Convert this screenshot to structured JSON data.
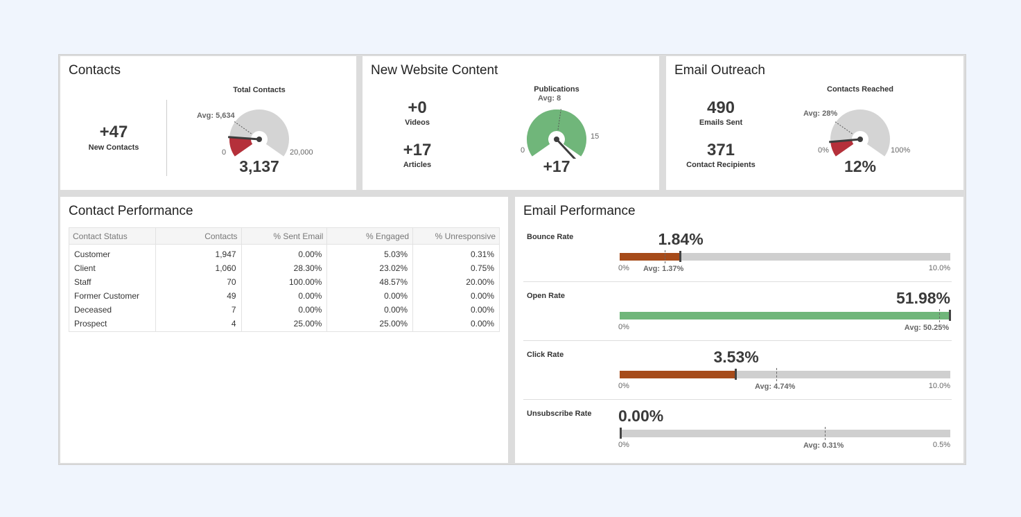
{
  "contacts": {
    "title": "Contacts",
    "new_value": "+47",
    "new_label": "New Contacts",
    "gauge": {
      "title": "Total Contacts",
      "value_label": "3,137",
      "min_label": "0",
      "max_label": "20,000",
      "avg_label": "Avg: 5,634",
      "value": 3137,
      "min": 0,
      "max": 20000,
      "avg": 5634,
      "color": "#b5303a"
    }
  },
  "website": {
    "title": "New Website Content",
    "videos_value": "+0",
    "videos_label": "Videos",
    "articles_value": "+17",
    "articles_label": "Articles",
    "gauge": {
      "title": "Publications",
      "value_label": "+17",
      "min_label": "0",
      "max_label": "15",
      "avg_label": "Avg: 8",
      "value": 17,
      "min": 0,
      "max": 15,
      "avg": 8,
      "color": "#70b67a"
    }
  },
  "email_outreach": {
    "title": "Email Outreach",
    "sent_value": "490",
    "sent_label": "Emails Sent",
    "recipients_value": "371",
    "recipients_label": "Contact Recipients",
    "gauge": {
      "title": "Contacts Reached",
      "value_label": "12%",
      "min_label": "0%",
      "max_label": "100%",
      "avg_label": "Avg: 28%",
      "value": 12,
      "min": 0,
      "max": 100,
      "avg": 28,
      "color": "#b5303a"
    }
  },
  "contact_performance": {
    "title": "Contact Performance",
    "columns": [
      "Contact Status",
      "Contacts",
      "% Sent Email",
      "% Engaged",
      "% Unresponsive"
    ],
    "rows": [
      [
        "Customer",
        "1,947",
        "0.00%",
        "5.03%",
        "0.31%"
      ],
      [
        "Client",
        "1,060",
        "28.30%",
        "23.02%",
        "0.75%"
      ],
      [
        "Staff",
        "70",
        "100.00%",
        "48.57%",
        "20.00%"
      ],
      [
        "Former Customer",
        "49",
        "0.00%",
        "0.00%",
        "0.00%"
      ],
      [
        "Deceased",
        "7",
        "0.00%",
        "0.00%",
        "0.00%"
      ],
      [
        "Prospect",
        "4",
        "25.00%",
        "25.00%",
        "0.00%"
      ]
    ]
  },
  "email_performance": {
    "title": "Email Performance",
    "metrics": [
      {
        "name": "Bounce Rate",
        "value_label": "1.84%",
        "min_label": "0%",
        "max_label": "10.0%",
        "avg_label": "Avg: 1.37%",
        "value": 1.84,
        "max": 10,
        "avg": 1.37,
        "color": "#a64b1a"
      },
      {
        "name": "Open Rate",
        "value_label": "51.98%",
        "min_label": "0%",
        "max_label": "",
        "avg_label": "Avg: 50.25%",
        "value": 51.98,
        "max": 51.98,
        "avg": 50.25,
        "color": "#70b67a"
      },
      {
        "name": "Click Rate",
        "value_label": "3.53%",
        "min_label": "0%",
        "max_label": "10.0%",
        "avg_label": "Avg: 4.74%",
        "value": 3.53,
        "max": 10,
        "avg": 4.74,
        "color": "#a64b1a"
      },
      {
        "name": "Unsubscribe Rate",
        "value_label": "0.00%",
        "min_label": "0%",
        "max_label": "0.5%",
        "avg_label": "Avg: 0.31%",
        "value": 0,
        "max": 0.5,
        "avg": 0.31,
        "color": "#a64b1a"
      }
    ]
  }
}
